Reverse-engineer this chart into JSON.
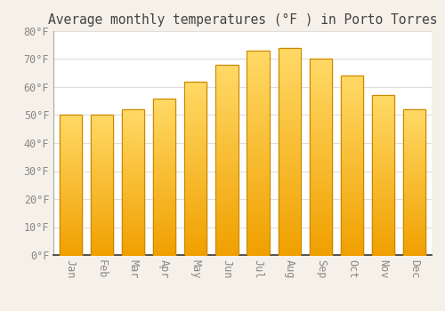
{
  "title": "Average monthly temperatures (°F ) in Porto Torres",
  "months": [
    "Jan",
    "Feb",
    "Mar",
    "Apr",
    "May",
    "Jun",
    "Jul",
    "Aug",
    "Sep",
    "Oct",
    "Nov",
    "Dec"
  ],
  "values": [
    50,
    50,
    52,
    56,
    62,
    68,
    73,
    74,
    70,
    64,
    57,
    52
  ],
  "bar_color_top": "#FFD966",
  "bar_color_bottom": "#F0A000",
  "bar_edge_color": "#CC8800",
  "ylim": [
    0,
    80
  ],
  "yticks": [
    0,
    10,
    20,
    30,
    40,
    50,
    60,
    70,
    80
  ],
  "background_color": "#FFFFFF",
  "outer_background": "#F5F0E8",
  "grid_color": "#DDDDDD",
  "title_fontsize": 10.5,
  "tick_fontsize": 8.5,
  "tick_color": "#888888"
}
